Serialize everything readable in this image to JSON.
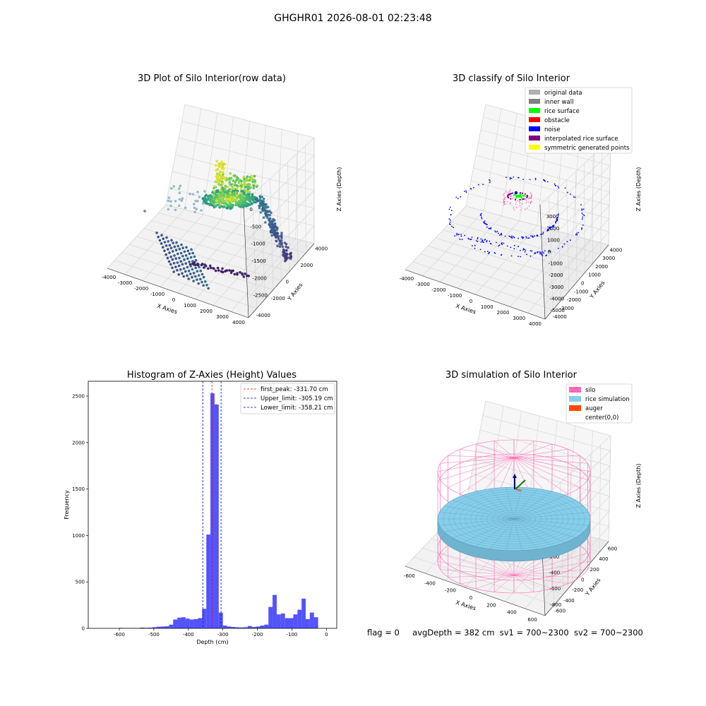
{
  "figure_title": "GHGHR01 2026-08-01 02:23:48",
  "status": {
    "flag": "flag = 0",
    "avg_depth": "avgDepth = 382 cm",
    "sv1": "sv1 = 700~2300",
    "sv2": "sv2 = 700~2300"
  },
  "colors": {
    "original": "#b0b0b0",
    "inner_wall": "#808080",
    "rice_surface": "#00ff00",
    "obstacle": "#ff0000",
    "noise": "#0000ff",
    "interpolated": "#800080",
    "symmetric": "#ffff00",
    "hist_bar": "#4040ff",
    "peak_line": "#ff0000",
    "limit_line": "#0000cc",
    "silo": "#ff69b4",
    "rice_sim": "#87ceeb",
    "auger": "#ff4500"
  },
  "chart_data": [
    {
      "type": "scatter",
      "title": "3D Plot of Silo Interior(row data)",
      "xlabel": "X Axies",
      "ylabel": "Y Axies",
      "zlabel": "Z Axies (Depth)",
      "x_ticks": [
        "-4000",
        "-3000",
        "-2000",
        "-1000",
        "0",
        "1000",
        "2000",
        "3000",
        "4000"
      ],
      "y_ticks": [
        "-4000",
        "-2000",
        "0",
        "2000",
        "4000"
      ],
      "z_ticks": [
        "0",
        "-500",
        "-1000",
        "-1500",
        "-2000",
        "-2500"
      ],
      "xlim": [
        -4200,
        4200
      ],
      "ylim": [
        -4800,
        4800
      ],
      "zlim": [
        -2800,
        0
      ]
    },
    {
      "type": "scatter",
      "title": "3D classify of Silo Interior",
      "xlabel": "X Axies",
      "ylabel": "Y Axies",
      "zlabel": "Z Axies (Depth)",
      "x_ticks": [
        "-4000",
        "-3000",
        "-2000",
        "-1000",
        "0",
        "1000",
        "2000",
        "3000",
        "4000"
      ],
      "y_ticks": [
        "-4000",
        "-3000",
        "-2000",
        "-1000",
        "0",
        "1000",
        "2000",
        "3000",
        "4000"
      ],
      "z_ticks": [
        "3000",
        "2000",
        "1000",
        "0",
        "-1000",
        "-2000",
        "-3000",
        "-4000",
        "-5000"
      ],
      "legend": [
        "original data",
        "inner wall",
        "rice surface",
        "obstacle",
        "noise",
        "interpolated rice surface",
        "symmetric generated points"
      ],
      "legend_placement": "top-right"
    },
    {
      "type": "bar",
      "title": "Histogram of Z-Axies (Height) Values",
      "xlabel": "Depth (cm)",
      "ylabel": "Frequency",
      "xlim": [
        -690,
        30
      ],
      "ylim": [
        0,
        2660
      ],
      "x_ticks": [
        -600,
        -500,
        -400,
        -300,
        -200,
        -100,
        0
      ],
      "y_ticks": [
        0,
        500,
        1000,
        1500,
        2000,
        2500
      ],
      "bin_width": 12,
      "bins": [
        [
          -600,
          5
        ],
        [
          -588,
          3
        ],
        [
          -576,
          2
        ],
        [
          -564,
          4
        ],
        [
          -552,
          3
        ],
        [
          -540,
          8
        ],
        [
          -528,
          6
        ],
        [
          -516,
          8
        ],
        [
          -504,
          12
        ],
        [
          -492,
          18
        ],
        [
          -480,
          20
        ],
        [
          -468,
          22
        ],
        [
          -456,
          40
        ],
        [
          -444,
          95
        ],
        [
          -432,
          115
        ],
        [
          -420,
          120
        ],
        [
          -408,
          105
        ],
        [
          -396,
          95
        ],
        [
          -384,
          100
        ],
        [
          -372,
          110
        ],
        [
          -360,
          210
        ],
        [
          -348,
          1010
        ],
        [
          -336,
          2530
        ],
        [
          -324,
          2410
        ],
        [
          -312,
          170
        ],
        [
          -300,
          30
        ],
        [
          -288,
          20
        ],
        [
          -276,
          15
        ],
        [
          -264,
          12
        ],
        [
          -252,
          10
        ],
        [
          -240,
          12
        ],
        [
          -228,
          25
        ],
        [
          -216,
          15
        ],
        [
          -204,
          20
        ],
        [
          -192,
          30
        ],
        [
          -180,
          40
        ],
        [
          -168,
          230
        ],
        [
          -156,
          360
        ],
        [
          -144,
          150
        ],
        [
          -132,
          160
        ],
        [
          -120,
          110
        ],
        [
          -108,
          110
        ],
        [
          -96,
          150
        ],
        [
          -84,
          200
        ],
        [
          -72,
          320
        ],
        [
          -60,
          100
        ],
        [
          -48,
          170
        ],
        [
          -36,
          120
        ]
      ],
      "vlines": [
        {
          "label": "first_peak: -331.70 cm",
          "value": -331.7,
          "color": "#ff0000"
        },
        {
          "label": "Upper_limit: -305.19 cm",
          "value": -305.19,
          "color": "#0000cc"
        },
        {
          "label": "Lower_limit: -358.21 cm",
          "value": -358.21,
          "color": "#0000cc"
        }
      ],
      "legend_placement": "top-right"
    },
    {
      "type": "scatter",
      "title": "3D simulation of Silo Interior",
      "xlabel": "X Axies",
      "ylabel": "Y Axies",
      "zlabel": "Z Axies (Depth)",
      "x_ticks": [
        "-600",
        "-400",
        "-200",
        "0",
        "200",
        "400",
        "600"
      ],
      "y_ticks": [
        "-600",
        "-400",
        "-200",
        "0",
        "200",
        "400",
        "600"
      ],
      "z_ticks": [
        "400",
        "200",
        "0",
        "-200",
        "-400",
        "-600",
        "-800"
      ],
      "legend": [
        "silo",
        "rice simulation",
        "auger",
        "center(0,0)"
      ],
      "legend_placement": "top-right"
    }
  ]
}
